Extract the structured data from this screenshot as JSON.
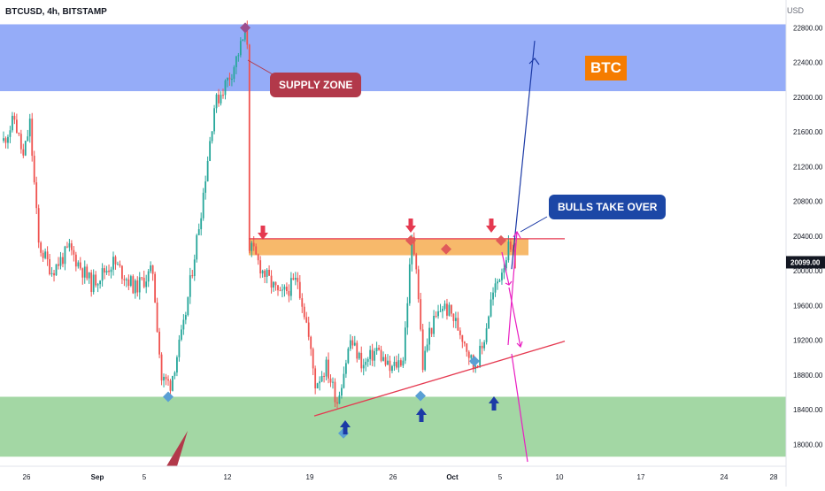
{
  "header": {
    "symbol": "BTCUSD, 4h, BITSTAMP",
    "currency": "USD"
  },
  "annotations": {
    "supply_zone": "SUPPLY ZONE",
    "bulls": "BULLS TAKE OVER",
    "badge": "BTC"
  },
  "colors": {
    "up": "#26a69a",
    "down": "#ef5350",
    "supply_zone": "#8fa8f8",
    "demand_zone": "#a3d7a4",
    "resistance": "#f7b96b",
    "trendline": "#e53950",
    "projection": "#e91ec2",
    "target": "#1c3aa6",
    "price_badge": "#131722"
  },
  "chart_data": {
    "type": "candlestick",
    "interval": "4h",
    "ylim": [
      17750,
      23120
    ],
    "yticks": [
      18000,
      18400,
      18800,
      19200,
      19600,
      20000,
      20400,
      20800,
      21200,
      21600,
      22000,
      22400,
      22800
    ],
    "ytick_labels": [
      "18000.00",
      "18400.00",
      "18800.00",
      "19200.00",
      "19600.00",
      "20000.00",
      "20400.00",
      "20800.00",
      "21200.00",
      "21600.00",
      "22000.00",
      "22400.00",
      "22800.00"
    ],
    "xticks": [
      "26",
      "Sep",
      "5",
      "12",
      "19",
      "26",
      "Oct",
      "5",
      "10",
      "17",
      "24",
      "28"
    ],
    "last_price": 20099.0,
    "last_price_label": "20099.00",
    "zones": {
      "supply": [
        22070,
        22840
      ],
      "demand": [
        17860,
        18550
      ],
      "resistance": [
        20180,
        20370
      ]
    },
    "anchors": [
      [
        0,
        21500
      ],
      [
        5,
        21750
      ],
      [
        9,
        21300
      ],
      [
        12,
        21700
      ],
      [
        16,
        20300
      ],
      [
        22,
        20000
      ],
      [
        30,
        20250
      ],
      [
        40,
        19850
      ],
      [
        50,
        20100
      ],
      [
        60,
        19800
      ],
      [
        68,
        20000
      ],
      [
        72,
        18750
      ],
      [
        76,
        18700
      ],
      [
        82,
        19350
      ],
      [
        90,
        20700
      ],
      [
        96,
        21900
      ],
      [
        104,
        22300
      ],
      [
        110,
        22730
      ],
      [
        111,
        22650
      ],
      [
        112,
        20300
      ],
      [
        118,
        20000
      ],
      [
        126,
        19700
      ],
      [
        134,
        19900
      ],
      [
        138,
        19400
      ],
      [
        142,
        18700
      ],
      [
        147,
        18900
      ],
      [
        152,
        18500
      ],
      [
        158,
        19200
      ],
      [
        164,
        18900
      ],
      [
        170,
        19100
      ],
      [
        176,
        18850
      ],
      [
        182,
        19000
      ],
      [
        186,
        20350
      ],
      [
        188,
        20100
      ],
      [
        191,
        18900
      ],
      [
        194,
        19300
      ],
      [
        200,
        19600
      ],
      [
        204,
        19500
      ],
      [
        210,
        19200
      ],
      [
        214,
        18900
      ],
      [
        218,
        19100
      ],
      [
        222,
        19650
      ],
      [
        226,
        19950
      ],
      [
        230,
        20250
      ],
      [
        233,
        20099
      ]
    ]
  }
}
